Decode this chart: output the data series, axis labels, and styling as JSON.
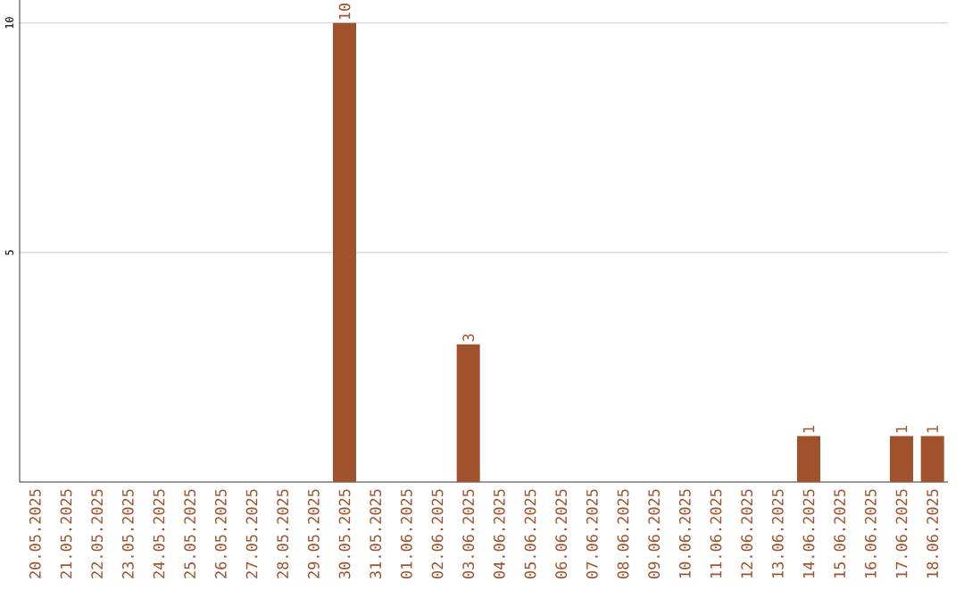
{
  "chart_data": {
    "type": "bar",
    "categories": [
      "20.05.2025",
      "21.05.2025",
      "22.05.2025",
      "23.05.2025",
      "24.05.2025",
      "25.05.2025",
      "26.05.2025",
      "27.05.2025",
      "28.05.2025",
      "29.05.2025",
      "30.05.2025",
      "31.05.2025",
      "01.06.2025",
      "02.06.2025",
      "03.06.2025",
      "04.06.2025",
      "05.06.2025",
      "06.06.2025",
      "07.06.2025",
      "08.06.2025",
      "09.06.2025",
      "10.06.2025",
      "11.06.2025",
      "12.06.2025",
      "13.06.2025",
      "14.06.2025",
      "15.06.2025",
      "16.06.2025",
      "17.06.2025",
      "18.06.2025"
    ],
    "values": [
      0,
      0,
      0,
      0,
      0,
      0,
      0,
      0,
      0,
      0,
      10,
      0,
      0,
      0,
      3,
      0,
      0,
      0,
      0,
      0,
      0,
      0,
      0,
      0,
      0,
      1,
      0,
      0,
      1,
      1
    ],
    "value_labels": [
      null,
      null,
      null,
      null,
      null,
      null,
      null,
      null,
      null,
      null,
      "10",
      null,
      null,
      null,
      "3",
      null,
      null,
      null,
      null,
      null,
      null,
      null,
      null,
      null,
      null,
      "1",
      null,
      null,
      "1",
      "1"
    ],
    "color": "#a0522d",
    "ylim": [
      0,
      10.5
    ],
    "yticks": [
      5,
      10
    ],
    "grid": "y"
  }
}
